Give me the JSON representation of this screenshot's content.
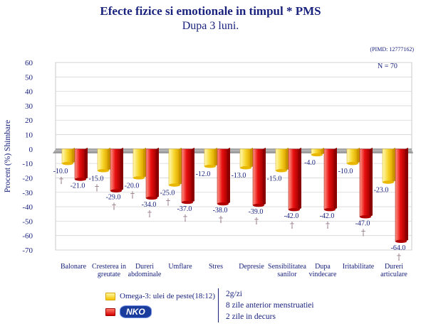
{
  "title": "Efecte fizice si emotionale in timpul * PMS",
  "subtitle": "Dupa 3 luni.",
  "source": "(PIMD: 12777162)",
  "n_label": "N = 70",
  "chart_data": {
    "type": "bar",
    "ylabel": "Procent (%) Shimbare",
    "ylim": [
      -70,
      60
    ],
    "yticks": [
      60,
      50,
      40,
      30,
      20,
      10,
      0,
      -10,
      -20,
      -30,
      -40,
      -50,
      -60,
      -70
    ],
    "categories": [
      [
        "Balonare"
      ],
      [
        "Cresterea in",
        "greutate"
      ],
      [
        "Dureri",
        "abdominale"
      ],
      [
        "Umflare"
      ],
      [
        "Stres"
      ],
      [
        "Depresie"
      ],
      [
        "Sensibilitatea",
        "sanilor"
      ],
      [
        "Dupa",
        "vindecare"
      ],
      [
        "Iritabilitate"
      ],
      [
        "Dureri",
        "articulare"
      ]
    ],
    "series": [
      {
        "name": "Omega-3: ulei de peste(18:12)",
        "color": "#f5c400",
        "values": [
          -10.0,
          -15.0,
          -20.0,
          -25.0,
          -12.0,
          -13.0,
          -15.0,
          -4.0,
          -10.0,
          -23.0
        ]
      },
      {
        "name": "",
        "color": "#d40000",
        "values": [
          -21.0,
          -29.0,
          -34.0,
          -37.0,
          -38.0,
          -39.0,
          -42.0,
          -42.0,
          -47.0,
          -64.0
        ]
      }
    ],
    "value_labels": [
      [
        "-10.0",
        "-15.0",
        "-20.0",
        "-25.0",
        "-12.0",
        "-13.0",
        "-15.0",
        "-4.0",
        "-10.0",
        "-23.0"
      ],
      [
        "-21.0",
        "-29.0",
        "-34.0",
        "-37.0",
        "-38.0",
        "-39.0",
        "-42.0",
        "-42.0",
        "-47.0",
        "-64.0"
      ]
    ],
    "significance_marker": "†",
    "significance_flags": [
      [
        true,
        true,
        true,
        true,
        false,
        false,
        false,
        false,
        false,
        false
      ],
      [
        false,
        true,
        true,
        true,
        true,
        true,
        true,
        true,
        true,
        true
      ]
    ]
  },
  "legend": {
    "series1_label": "Omega-3: ulei de peste(18:12)",
    "brand_label": "NKO"
  },
  "notes": [
    "2g/zi",
    "8 zile anterior menstruatiei",
    "2 zile in decurs"
  ]
}
